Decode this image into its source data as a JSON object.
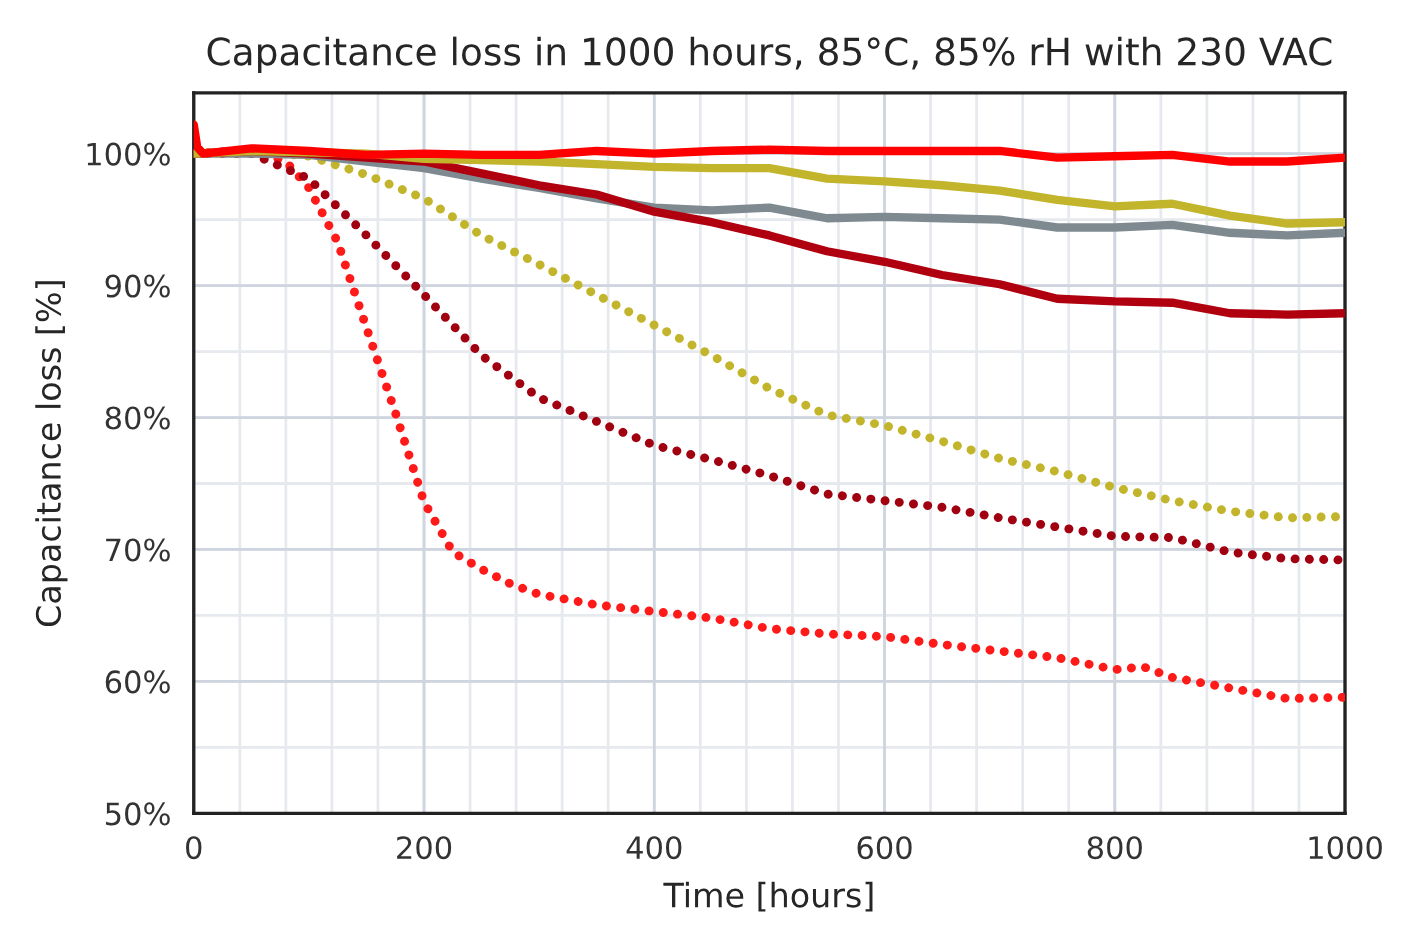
{
  "chart_data": {
    "type": "line",
    "title": "Capacitance loss in 1000 hours, 85°C, 85% rH with 230 VAC",
    "xlabel": "Time [hours]",
    "ylabel": "Capacitance loss [%]",
    "x": [
      0,
      50,
      100,
      150,
      200,
      250,
      300,
      350,
      400,
      450,
      500,
      550,
      600,
      650,
      700,
      750,
      800,
      850,
      900,
      950,
      1000
    ],
    "xlim": [
      0,
      1000
    ],
    "xticks": [
      0,
      200,
      400,
      600,
      800,
      1000
    ],
    "ylim": [
      50,
      104.6
    ],
    "yticks": [
      {
        "value": 50,
        "label": "50%"
      },
      {
        "value": 60,
        "label": "60%"
      },
      {
        "value": 70,
        "label": "70%"
      },
      {
        "value": 80,
        "label": "80%"
      },
      {
        "value": 90,
        "label": "90%"
      },
      {
        "value": 100,
        "label": "100%"
      }
    ],
    "grid": true,
    "marker": "none",
    "series": [
      {
        "color": "#ff0000",
        "line_style": "solid",
        "x": [
          0,
          3,
          8,
          50,
          100,
          150,
          200,
          250,
          300,
          350,
          400,
          450,
          500,
          550,
          600,
          650,
          700,
          750,
          800,
          850,
          900,
          950,
          1000
        ],
        "values": [
          102.2,
          100.5,
          100,
          100.4,
          100.2,
          99.9,
          100,
          99.9,
          99.9,
          100.2,
          100,
          100.2,
          100.3,
          100.2,
          100.2,
          100.2,
          100.2,
          99.7,
          99.8,
          99.9,
          99.4,
          99.4,
          99.7
        ]
      },
      {
        "color": "#c2b52b",
        "line_style": "solid",
        "values": [
          100,
          100.2,
          100.1,
          100,
          99.6,
          99.5,
          99.4,
          99.2,
          99.0,
          98.9,
          98.9,
          98.1,
          97.9,
          97.6,
          97.2,
          96.5,
          96.0,
          96.2,
          95.3,
          94.7,
          94.8
        ]
      },
      {
        "color": "#b00010",
        "line_style": "solid",
        "values": [
          100,
          100.2,
          100,
          99.7,
          99.4,
          98.5,
          97.6,
          96.9,
          95.6,
          94.8,
          93.8,
          92.6,
          91.8,
          90.8,
          90.1,
          89.0,
          88.8,
          88.7,
          87.9,
          87.8,
          87.9
        ]
      },
      {
        "color": "#7f8a90",
        "line_style": "solid",
        "values": [
          100,
          100,
          99.9,
          99.4,
          98.9,
          98.1,
          97.4,
          96.6,
          95.9,
          95.7,
          95.9,
          95.1,
          95.2,
          95.1,
          95.0,
          94.4,
          94.4,
          94.6,
          94.0,
          93.8,
          94.0
        ]
      },
      {
        "color": "#c2b52b",
        "line_style": "dotted",
        "values": [
          100,
          100.2,
          99.8,
          98.4,
          96.6,
          93.8,
          91.6,
          89.3,
          87.0,
          84.7,
          82.2,
          80.2,
          79.4,
          78.2,
          76.9,
          75.9,
          74.7,
          73.7,
          72.9,
          72.4,
          72.5
        ]
      },
      {
        "color": "#a00010",
        "line_style": "dotted",
        "values": [
          100,
          100,
          98.1,
          93.8,
          89.3,
          84.7,
          81.5,
          79.7,
          77.9,
          76.8,
          75.6,
          74.2,
          73.7,
          73.2,
          72.4,
          71.7,
          71.0,
          70.9,
          69.8,
          69.3,
          69.2
        ]
      },
      {
        "color": "#ff1a1a",
        "line_style": "dotted",
        "x": [
          0,
          50,
          80,
          100,
          125,
          150,
          175,
          200,
          225,
          250,
          275,
          300,
          350,
          400,
          450,
          500,
          550,
          600,
          650,
          700,
          750,
          800,
          825,
          850,
          900,
          950,
          1000
        ],
        "values": [
          100,
          100.3,
          99.4,
          97.4,
          93.3,
          86.8,
          80.4,
          73.6,
          69.8,
          68.5,
          67.4,
          66.6,
          65.8,
          65.3,
          64.8,
          64.0,
          63.6,
          63.4,
          62.8,
          62.3,
          61.8,
          60.9,
          61.1,
          60.3,
          59.5,
          58.7,
          58.8
        ]
      }
    ]
  }
}
